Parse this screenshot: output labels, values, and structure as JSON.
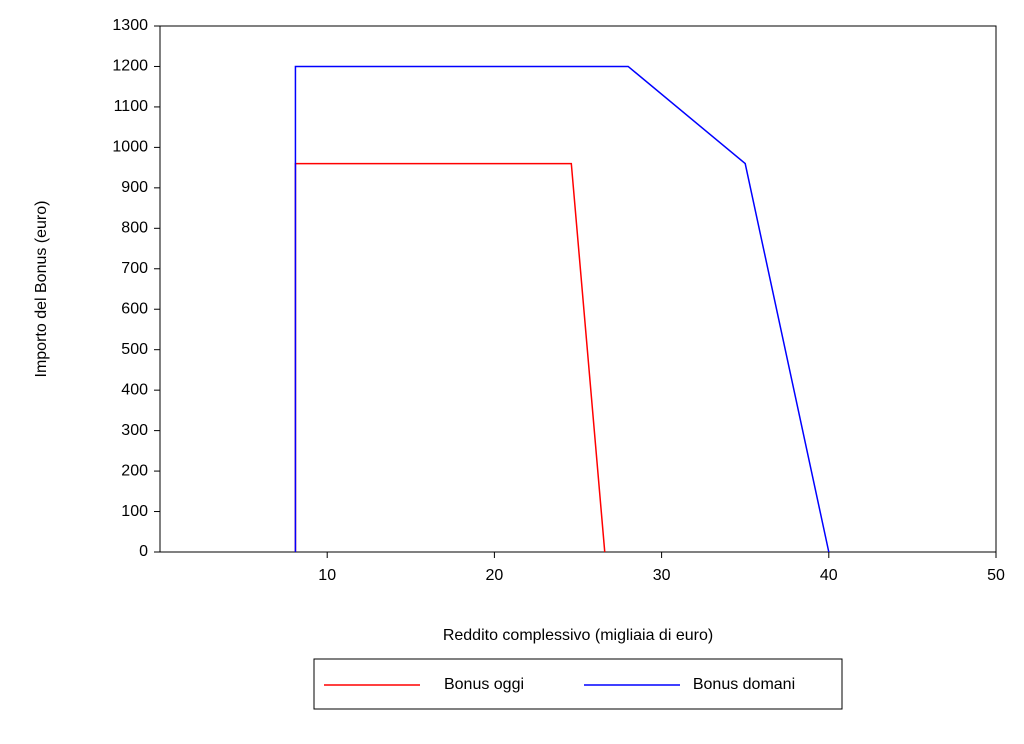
{
  "chart_data": {
    "type": "line",
    "x_label": "Reddito complessivo (migliaia di euro)",
    "y_label": "Importo del Bonus (euro)",
    "xlim": [
      0,
      50
    ],
    "xticks": [
      10,
      20,
      30,
      40,
      50
    ],
    "ylim": [
      0,
      1300
    ],
    "yticks": [
      0,
      100,
      200,
      300,
      400,
      500,
      600,
      700,
      800,
      900,
      1000,
      1100,
      1200,
      1300
    ],
    "grid": false,
    "legend": "bottom",
    "series": [
      {
        "name": "Bonus oggi",
        "color": "#ff0000",
        "x": [
          8.1,
          8.1,
          24.6,
          26.6
        ],
        "values": [
          0,
          960,
          960,
          0
        ]
      },
      {
        "name": "Bonus domani",
        "color": "#0000ff",
        "x": [
          8.1,
          8.1,
          28,
          35,
          40
        ],
        "values": [
          0,
          1200,
          1200,
          960,
          0
        ]
      }
    ]
  }
}
